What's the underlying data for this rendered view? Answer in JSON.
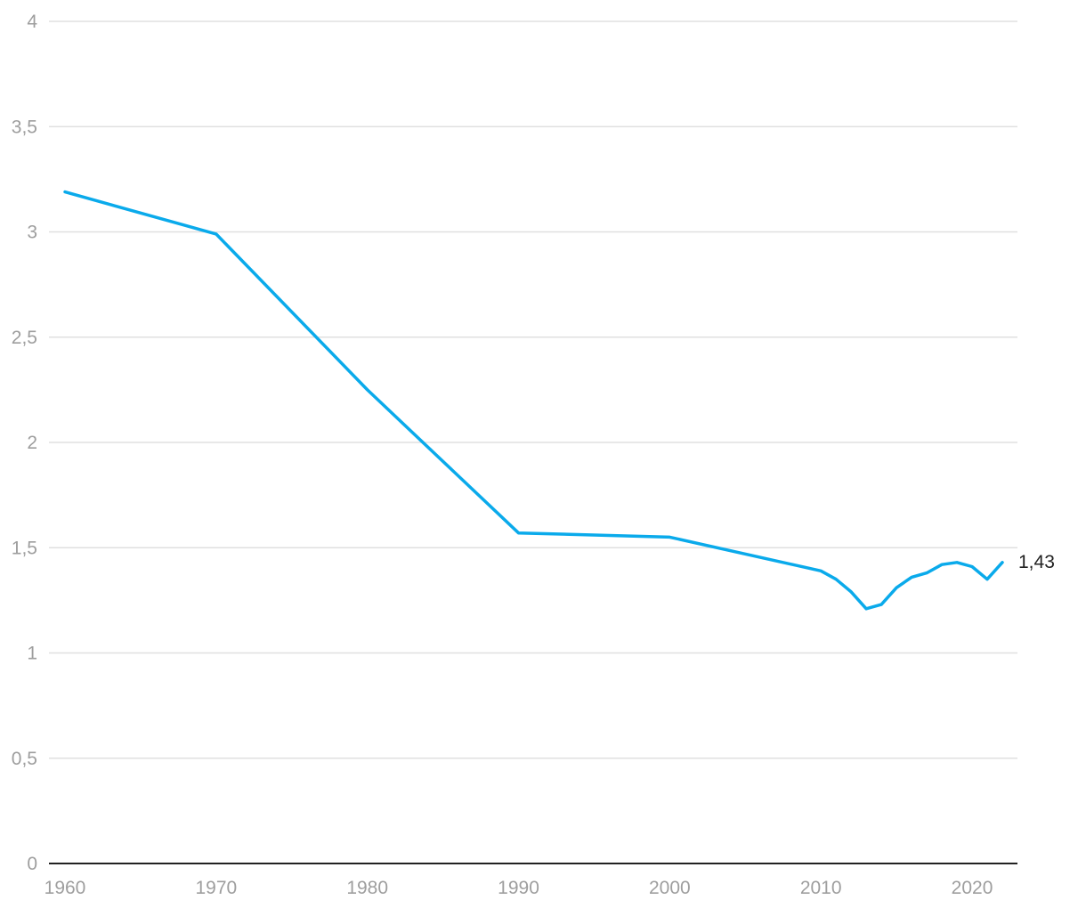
{
  "chart_data": {
    "type": "line",
    "title": "",
    "xlabel": "",
    "ylabel": "",
    "xlim": [
      1960,
      2022
    ],
    "ylim": [
      0,
      4
    ],
    "grid": true,
    "x_ticks": [
      "1960",
      "1970",
      "1980",
      "1990",
      "2000",
      "2010",
      "2020"
    ],
    "y_ticks": [
      "0",
      "0,5",
      "1",
      "1,5",
      "2",
      "2,5",
      "3",
      "3,5",
      "4"
    ],
    "series": [
      {
        "color": "#0aaaeb",
        "x": [
          1960,
          1970,
          1980,
          1990,
          2000,
          2010,
          2011,
          2012,
          2013,
          2014,
          2015,
          2016,
          2017,
          2018,
          2019,
          2020,
          2021,
          2022
        ],
        "values": [
          3.19,
          2.99,
          2.25,
          1.57,
          1.55,
          1.39,
          1.35,
          1.29,
          1.21,
          1.23,
          1.31,
          1.36,
          1.38,
          1.42,
          1.43,
          1.41,
          1.35,
          1.43
        ]
      }
    ],
    "end_label": "1,43"
  }
}
